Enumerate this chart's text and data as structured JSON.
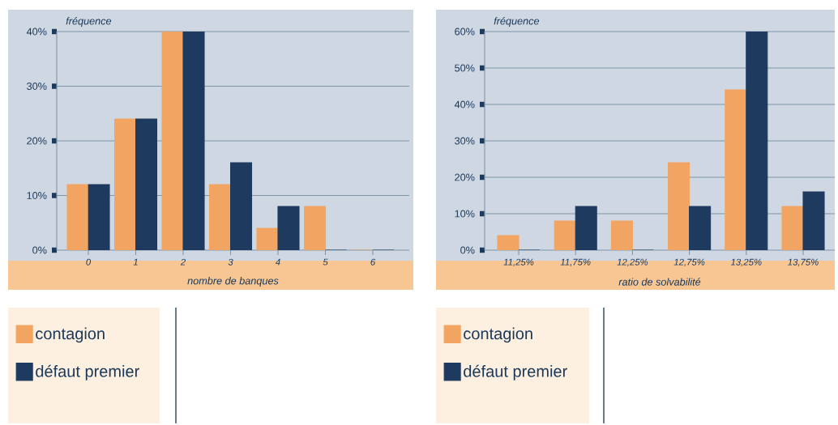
{
  "chart_data": [
    {
      "type": "bar",
      "xlabel": "nombre de banques",
      "ylabel": "fréquence",
      "categories": [
        "0",
        "1",
        "2",
        "3",
        "4",
        "5",
        "6"
      ],
      "series": [
        {
          "name": "contagion",
          "color": "#f2a562",
          "values": [
            12,
            24,
            40,
            12,
            4,
            8,
            0
          ]
        },
        {
          "name": "défaut premier",
          "color": "#1e3a5f",
          "values": [
            12,
            24,
            40,
            16,
            8,
            0,
            0
          ]
        }
      ],
      "ylim": [
        0,
        40
      ],
      "yticks": [
        {
          "value": 0,
          "label": "0%"
        },
        {
          "value": 10,
          "label": "10%"
        },
        {
          "value": 20,
          "label": "20%"
        },
        {
          "value": 30,
          "label": "30%"
        },
        {
          "value": 40,
          "label": "40%"
        }
      ],
      "grid": "y",
      "legend": "bottom left"
    },
    {
      "type": "bar",
      "xlabel": "ratio de solvabilité",
      "ylabel": "fréquence",
      "categories": [
        "11,25%",
        "11,75%",
        "12,25%",
        "12,75%",
        "13,25%",
        "13,75%"
      ],
      "series": [
        {
          "name": "contagion",
          "color": "#f2a562",
          "values": [
            4,
            8,
            8,
            24,
            44,
            12
          ]
        },
        {
          "name": "défaut premier",
          "color": "#1e3a5f",
          "values": [
            0,
            12,
            0,
            12,
            60,
            16
          ]
        }
      ],
      "ylim": [
        0,
        60
      ],
      "yticks": [
        {
          "value": 0,
          "label": "0%"
        },
        {
          "value": 10,
          "label": "10%"
        },
        {
          "value": 20,
          "label": "20%"
        },
        {
          "value": 30,
          "label": "30%"
        },
        {
          "value": 40,
          "label": "40%"
        },
        {
          "value": 50,
          "label": "50%"
        },
        {
          "value": 60,
          "label": "60%"
        }
      ],
      "grid": "y",
      "legend": "bottom left"
    }
  ]
}
